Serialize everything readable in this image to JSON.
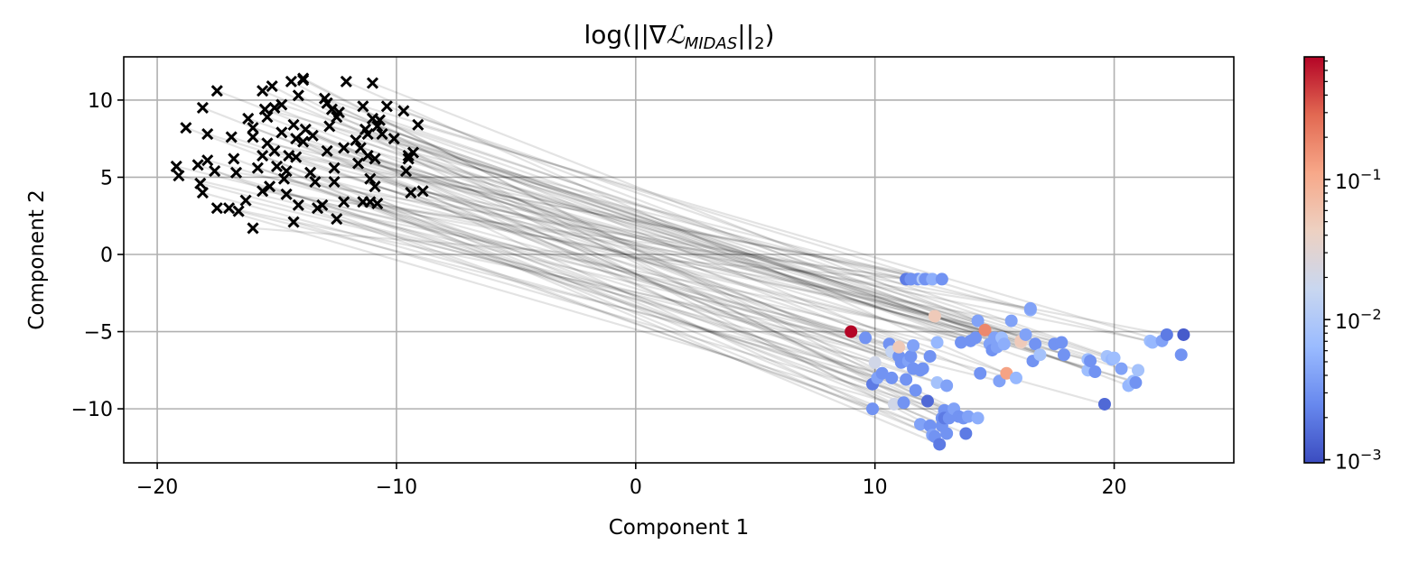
{
  "chart_data": {
    "type": "scatter",
    "title": "log(||∇ℒ_MIDAS||₂)",
    "title_main": "log(||∇",
    "title_script": "ℒ",
    "title_subscript": "MIDAS",
    "title_tail": "||",
    "title_tail_sub": "2",
    "title_close": ")",
    "xlabel": "Component 1",
    "ylabel": "Component 2",
    "xlim": [
      -21.4,
      25
    ],
    "ylim": [
      -13.5,
      12.8
    ],
    "xticks": [
      -20,
      -10,
      0,
      10,
      20
    ],
    "xtick_labels": [
      "−20",
      "−10",
      "0",
      "10",
      "20"
    ],
    "yticks": [
      10,
      5,
      0,
      -5,
      -10
    ],
    "ytick_labels": [
      "10",
      "5",
      "0",
      "−5",
      "−10"
    ],
    "grid": true,
    "colorbar": {
      "scale": "log",
      "cmap": "coolwarm",
      "min": 0.00095,
      "max": 0.75,
      "ticks": [
        0.001,
        0.01,
        0.1
      ],
      "tick_base": "10",
      "tick_exponents": [
        "−3",
        "−2",
        "−1"
      ],
      "colors": [
        "#3b4cc0",
        "#6788ee",
        "#9abbff",
        "#c9d7f0",
        "#edd1c2",
        "#f7a889",
        "#e26952",
        "#b40426"
      ]
    },
    "source": {
      "name": "source",
      "marker": "x",
      "color": "#000000",
      "x": [
        -19.2,
        -19.1,
        -18.8,
        -18.3,
        -18.2,
        -18.1,
        -18.1,
        -17.9,
        -17.9,
        -17.6,
        -17.5,
        -17.5,
        -17.0,
        -16.9,
        -16.8,
        -16.7,
        -16.6,
        -16.3,
        -16.2,
        -16.0,
        -16.0,
        -16.0,
        -15.8,
        -15.6,
        -15.6,
        -15.6,
        -15.5,
        -15.4,
        -15.4,
        -15.3,
        -15.2,
        -15.1,
        -15.1,
        -15.0,
        -14.8,
        -14.8,
        -14.7,
        -14.6,
        -14.6,
        -14.5,
        -14.4,
        -14.3,
        -14.3,
        -14.2,
        -14.2,
        -14.1,
        -14.1,
        -13.9,
        -13.9,
        -13.9,
        -13.8,
        -13.6,
        -13.5,
        -13.4,
        -13.3,
        -13.1,
        -13.0,
        -12.9,
        -12.9,
        -12.8,
        -12.7,
        -12.6,
        -12.6,
        -12.5,
        -12.5,
        -12.4,
        -12.2,
        -12.2,
        -12.1,
        -11.7,
        -11.6,
        -11.5,
        -11.4,
        -11.4,
        -11.3,
        -11.2,
        -11.2,
        -11.1,
        -11.1,
        -11.0,
        -11.0,
        -10.9,
        -10.9,
        -10.8,
        -10.8,
        -10.7,
        -10.6,
        -10.4,
        -10.1,
        -9.7,
        -9.6,
        -9.5,
        -9.5,
        -9.4,
        -9.3,
        -9.1,
        -8.9
      ],
      "y": [
        5.7,
        5.1,
        8.2,
        5.8,
        4.6,
        4.0,
        9.5,
        7.8,
        6.1,
        5.4,
        3.0,
        10.6,
        3.0,
        7.6,
        6.2,
        5.3,
        2.8,
        3.5,
        8.8,
        1.7,
        8.2,
        7.6,
        5.6,
        4.1,
        6.4,
        10.6,
        9.4,
        8.9,
        7.2,
        4.4,
        10.9,
        9.5,
        6.7,
        5.7,
        9.7,
        7.9,
        4.9,
        3.9,
        5.4,
        6.4,
        11.2,
        8.4,
        2.1,
        7.5,
        6.3,
        3.2,
        10.3,
        11.3,
        11.4,
        7.3,
        8.1,
        5.3,
        7.7,
        4.7,
        3.0,
        3.2,
        10.1,
        9.8,
        6.7,
        8.3,
        9.4,
        5.6,
        4.7,
        2.3,
        8.9,
        9.2,
        6.9,
        3.4,
        11.2,
        7.4,
        5.9,
        6.9,
        9.6,
        3.4,
        8.1,
        7.8,
        6.4,
        4.9,
        3.4,
        11.1,
        8.8,
        4.4,
        6.2,
        8.3,
        3.3,
        8.7,
        7.8,
        9.6,
        7.5,
        9.3,
        5.4,
        6.2,
        6.4,
        4.0,
        6.6,
        8.4,
        4.1
      ]
    },
    "target": {
      "name": "target",
      "marker": "o",
      "x": [
        9.0,
        9.6,
        9.9,
        9.9,
        10.0,
        10.1,
        10.3,
        10.6,
        10.7,
        10.7,
        10.8,
        11.0,
        11.0,
        11.1,
        11.2,
        11.3,
        11.3,
        11.4,
        11.5,
        11.5,
        11.6,
        11.6,
        11.7,
        11.8,
        11.9,
        11.9,
        12.0,
        12.0,
        12.1,
        12.2,
        12.3,
        12.3,
        12.4,
        12.4,
        12.5,
        12.5,
        12.6,
        12.6,
        12.7,
        12.8,
        12.8,
        12.8,
        12.9,
        12.9,
        13.0,
        13.0,
        13.1,
        13.3,
        13.5,
        13.6,
        13.7,
        13.8,
        13.9,
        14.0,
        14.2,
        14.3,
        14.3,
        14.4,
        14.6,
        14.8,
        14.9,
        15.0,
        15.1,
        15.2,
        15.3,
        15.4,
        15.5,
        15.7,
        15.9,
        16.1,
        16.1,
        16.3,
        16.5,
        16.5,
        16.6,
        16.7,
        16.9,
        17.5,
        17.8,
        17.9,
        18.9,
        18.9,
        19.0,
        19.2,
        19.6,
        19.7,
        19.9,
        20.0,
        20.3,
        20.6,
        20.8,
        20.9,
        21.0,
        21.5,
        21.6,
        22.0,
        22.2,
        22.8,
        22.9
      ],
      "y": [
        -5.0,
        -5.4,
        -8.4,
        -10.0,
        -7.0,
        -8.0,
        -7.7,
        -5.8,
        -6.3,
        -8.0,
        -9.7,
        -6.6,
        -6.0,
        -7.0,
        -9.6,
        -1.6,
        -8.1,
        -6.9,
        -6.6,
        -1.6,
        -7.4,
        -5.9,
        -8.8,
        -1.6,
        -11.0,
        -7.5,
        -1.6,
        -7.4,
        -1.6,
        -9.5,
        -11.1,
        -6.6,
        -1.6,
        -11.7,
        -4.0,
        -11.8,
        -8.3,
        -5.7,
        -12.3,
        -1.6,
        -10.6,
        -11.1,
        -10.1,
        -10.6,
        -8.5,
        -11.6,
        -10.6,
        -10.0,
        -10.5,
        -5.7,
        -10.6,
        -11.6,
        -10.5,
        -5.6,
        -5.4,
        -10.6,
        -4.3,
        -7.7,
        -4.9,
        -5.8,
        -6.2,
        -5.4,
        -6.0,
        -8.2,
        -5.4,
        -5.8,
        -7.7,
        -4.3,
        -8.0,
        -5.7,
        -5.6,
        -5.2,
        -3.6,
        -3.5,
        -6.9,
        -5.8,
        -6.5,
        -5.8,
        -5.7,
        -6.5,
        -7.5,
        -6.8,
        -6.9,
        -7.6,
        -9.7,
        -6.6,
        -6.8,
        -6.7,
        -7.4,
        -8.5,
        -8.2,
        -8.3,
        -7.5,
        -5.6,
        -5.7,
        -5.6,
        -5.2,
        -6.5,
        -5.2
      ],
      "value": [
        0.75,
        0.003,
        0.002,
        0.003,
        0.02,
        0.004,
        0.003,
        0.003,
        0.015,
        0.003,
        0.02,
        0.003,
        0.05,
        0.003,
        0.003,
        0.002,
        0.003,
        0.004,
        0.003,
        0.003,
        0.003,
        0.004,
        0.003,
        0.003,
        0.004,
        0.003,
        0.01,
        0.003,
        0.003,
        0.0015,
        0.003,
        0.003,
        0.005,
        0.004,
        0.05,
        0.003,
        0.008,
        0.006,
        0.002,
        0.003,
        0.003,
        0.003,
        0.003,
        0.002,
        0.004,
        0.003,
        0.003,
        0.004,
        0.003,
        0.003,
        0.003,
        0.002,
        0.004,
        0.003,
        0.003,
        0.005,
        0.004,
        0.003,
        0.18,
        0.004,
        0.003,
        0.004,
        0.004,
        0.004,
        0.007,
        0.005,
        0.12,
        0.004,
        0.006,
        0.04,
        0.05,
        0.004,
        0.005,
        0.004,
        0.003,
        0.003,
        0.008,
        0.003,
        0.003,
        0.003,
        0.007,
        0.007,
        0.003,
        0.003,
        0.0015,
        0.008,
        0.006,
        0.007,
        0.004,
        0.006,
        0.007,
        0.003,
        0.008,
        0.007,
        0.006,
        0.004,
        0.002,
        0.003,
        0.0012
      ]
    }
  }
}
